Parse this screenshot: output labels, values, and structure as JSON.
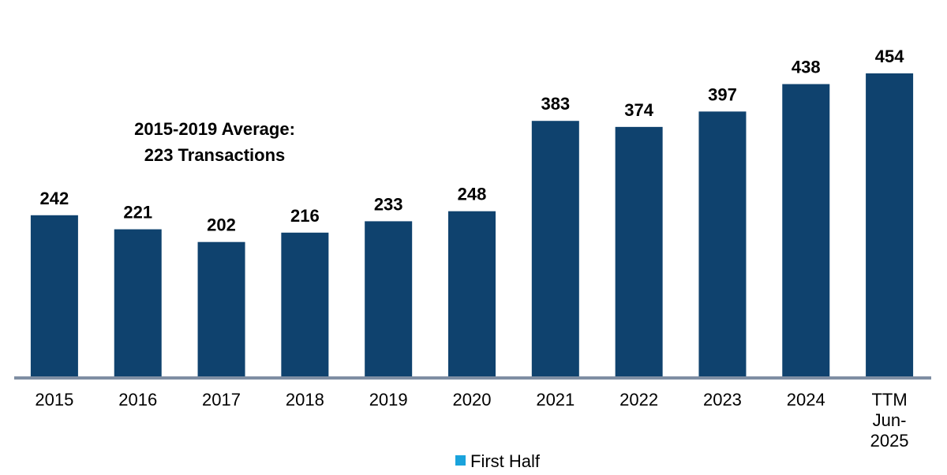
{
  "chart_data": {
    "type": "bar",
    "categories": [
      "2015",
      "2016",
      "2017",
      "2018",
      "2019",
      "2020",
      "2021",
      "2022",
      "2023",
      "2024",
      "TTM\nJun-2025"
    ],
    "values": [
      242,
      221,
      202,
      216,
      233,
      248,
      383,
      374,
      397,
      438,
      454
    ],
    "color": "#0f426e",
    "ylim": [
      0,
      500
    ],
    "annotation": "2015-2019 Average:\n223 Transactions",
    "legend": {
      "name": "First Half",
      "color": "#1aa3dc"
    }
  }
}
